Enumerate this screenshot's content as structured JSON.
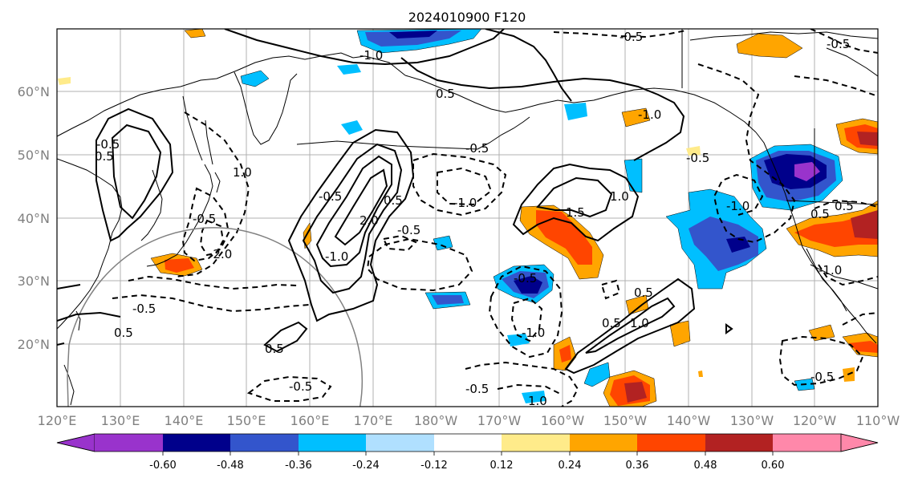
{
  "title": "2024010900 F120",
  "lat_labels": [
    "60°N",
    "50°N",
    "40°N",
    "30°N",
    "20°N"
  ],
  "lon_labels": [
    "120°E",
    "130°E",
    "140°E",
    "150°E",
    "160°E",
    "170°E",
    "180°W",
    "170°W",
    "160°W",
    "150°W",
    "140°W",
    "130°W",
    "120°W",
    "110°W"
  ],
  "colorbar": {
    "tick_labels": [
      "-0.60",
      "-0.48",
      "-0.36",
      "-0.24",
      "-0.12",
      "0.12",
      "0.24",
      "0.36",
      "0.48",
      "0.60"
    ],
    "colors": [
      "#9933cc",
      "#00008b",
      "#3355cc",
      "#00bfff",
      "#b0e0ff",
      "#ffffff",
      "#ffeb8a",
      "#ffa500",
      "#ff4500",
      "#b22222",
      "#ff88aa"
    ]
  },
  "contour_labels": {
    "a": "-1.0",
    "b": "-0.5",
    "c": "-0.5",
    "d": "0.5",
    "e": "-1.0",
    "f": "0.5",
    "g": "-0.5",
    "h": "-1.0",
    "i": "-0.5",
    "j": "1.0",
    "k": "1.5",
    "l": "0.5",
    "m": "1.0",
    "n": "-0.5",
    "o": "-1.0",
    "p": "-0.5",
    "q": "-0.5",
    "r": "-1.0",
    "s": "0.5",
    "t": "1.0",
    "u": "0.5",
    "v": "0.5",
    "w": "-0.5",
    "x": "-0.5",
    "y": "-1.0",
    "z": "2.0",
    "aa": "-2.0",
    "ab": "0.5",
    "ac": "-0.5",
    "ad": "1.0",
    "ae": "-1.0",
    "af": "0.5",
    "ag": "-0.5",
    "ah": "0.5",
    "ai": "-0.5",
    "aj": "-0.5"
  }
}
